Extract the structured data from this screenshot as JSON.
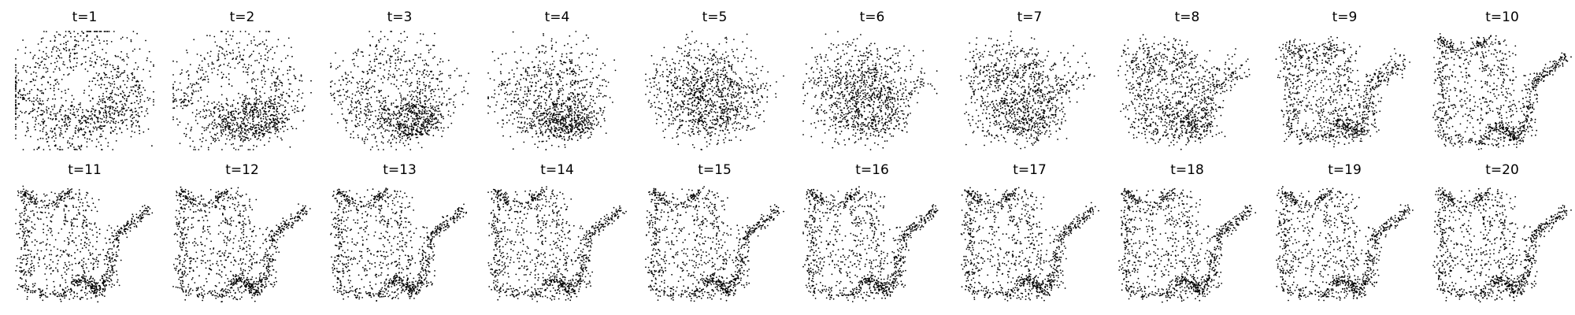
{
  "figure": {
    "point_color": "#000000",
    "background_color": "#ffffff",
    "axes_visible": false
  },
  "chart_data": [
    {
      "type": "scatter",
      "title": "t=1"
    },
    {
      "type": "scatter",
      "title": "t=2"
    },
    {
      "type": "scatter",
      "title": "t=3"
    },
    {
      "type": "scatter",
      "title": "t=4"
    },
    {
      "type": "scatter",
      "title": "t=5"
    },
    {
      "type": "scatter",
      "title": "t=6"
    },
    {
      "type": "scatter",
      "title": "t=7"
    },
    {
      "type": "scatter",
      "title": "t=8"
    },
    {
      "type": "scatter",
      "title": "t=9"
    },
    {
      "type": "scatter",
      "title": "t=10"
    },
    {
      "type": "scatter",
      "title": "t=11"
    },
    {
      "type": "scatter",
      "title": "t=12"
    },
    {
      "type": "scatter",
      "title": "t=13"
    },
    {
      "type": "scatter",
      "title": "t=14"
    },
    {
      "type": "scatter",
      "title": "t=15"
    },
    {
      "type": "scatter",
      "title": "t=16"
    },
    {
      "type": "scatter",
      "title": "t=17"
    },
    {
      "type": "scatter",
      "title": "t=18"
    },
    {
      "type": "scatter",
      "title": "t=19"
    },
    {
      "type": "scatter",
      "title": "t=20"
    }
  ]
}
